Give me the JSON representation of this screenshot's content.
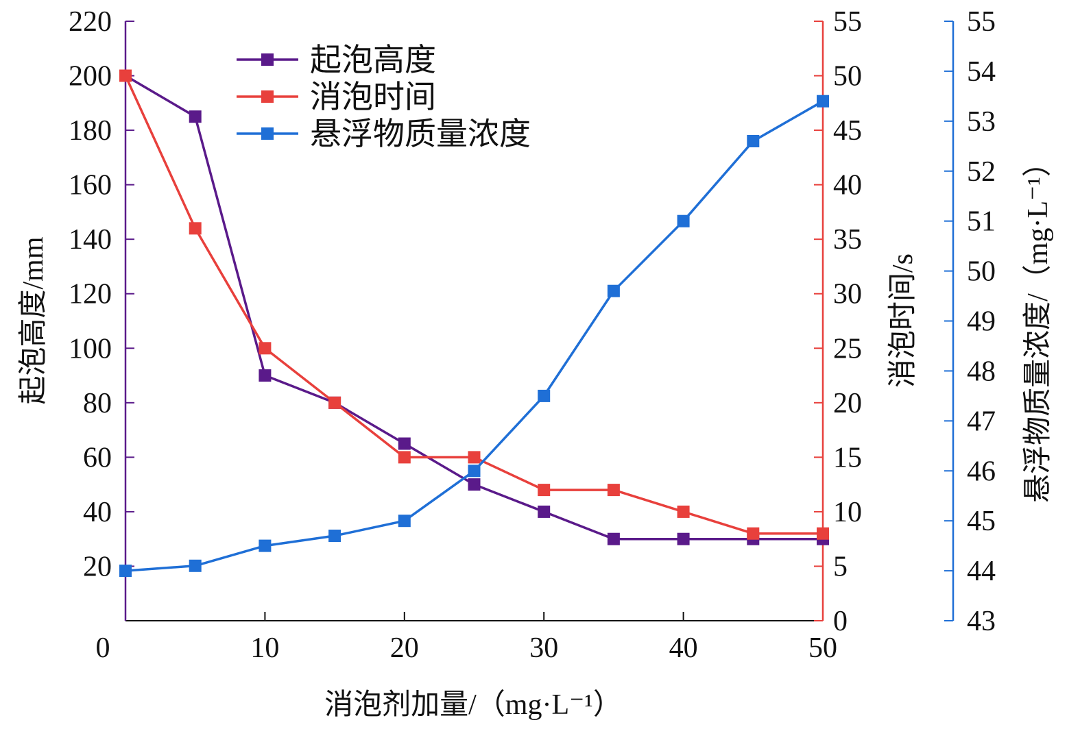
{
  "chart_data": {
    "type": "line",
    "x": [
      0,
      5,
      10,
      15,
      20,
      25,
      30,
      35,
      40,
      45,
      50
    ],
    "xlim": [
      0,
      50
    ],
    "xticks": [
      0,
      10,
      20,
      30,
      40,
      50
    ],
    "xlabel": "消泡剂加量/（mg·L⁻¹）",
    "series": [
      {
        "name": "起泡高度",
        "axis": "left",
        "color": "#5a1a8a",
        "values": [
          200,
          185,
          90,
          80,
          65,
          50,
          40,
          30,
          30,
          30,
          30
        ]
      },
      {
        "name": "消泡时间",
        "axis": "right1",
        "color": "#e8403c",
        "values": [
          50,
          36,
          25,
          20,
          15,
          15,
          12,
          12,
          10,
          8,
          8
        ]
      },
      {
        "name": "悬浮物质量浓度",
        "axis": "right2",
        "color": "#1f6fd6",
        "values": [
          44.0,
          44.1,
          44.5,
          44.7,
          45.0,
          46.0,
          47.5,
          49.6,
          51.0,
          52.6,
          53.4
        ]
      }
    ],
    "axes": {
      "left": {
        "label": "起泡高度/mm",
        "ylim": [
          0,
          220
        ],
        "ticks": [
          20,
          40,
          60,
          80,
          100,
          120,
          140,
          160,
          180,
          200,
          220
        ],
        "color": "#5a1a8a"
      },
      "right1": {
        "label": "消泡时间/s",
        "ylim": [
          0,
          55
        ],
        "ticks": [
          0,
          5,
          10,
          15,
          20,
          25,
          30,
          35,
          40,
          45,
          50,
          55
        ],
        "color": "#e8403c"
      },
      "right2": {
        "label": "悬浮物质量浓度/（mg·L⁻¹）",
        "ylim": [
          43,
          55
        ],
        "ticks": [
          43,
          44,
          45,
          46,
          47,
          48,
          49,
          50,
          51,
          52,
          53,
          54,
          55
        ],
        "color": "#1f6fd6"
      }
    },
    "legend": {
      "position": "top-left",
      "entries": [
        "起泡高度",
        "消泡时间",
        "悬浮物质量浓度"
      ]
    },
    "grid": false
  }
}
